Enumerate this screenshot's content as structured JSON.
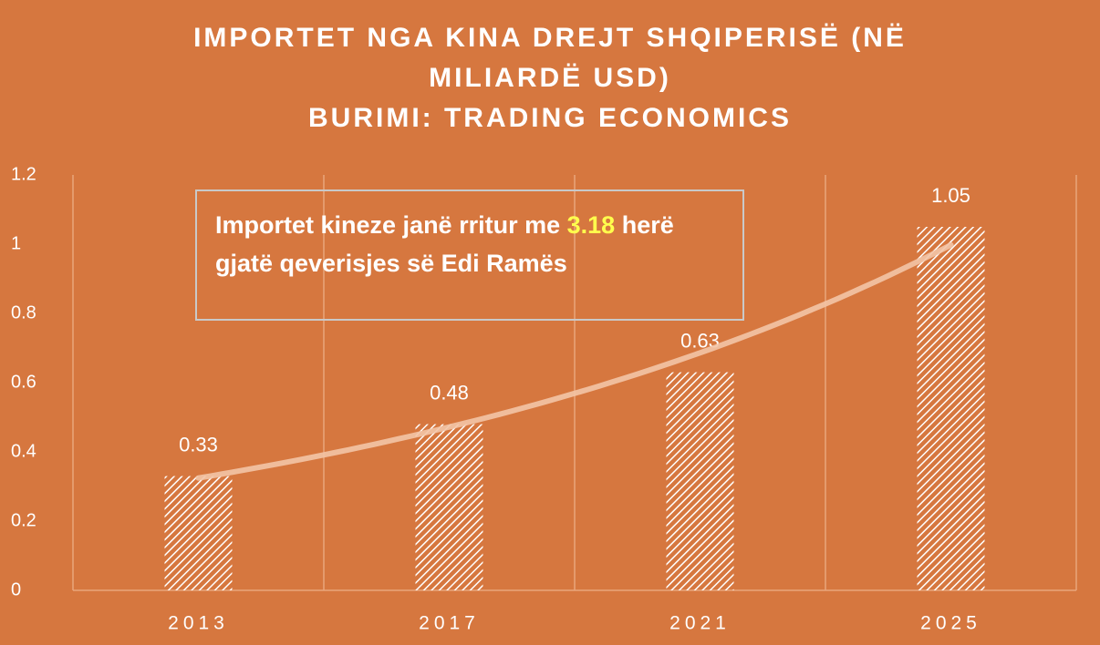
{
  "chart_data": {
    "type": "bar",
    "title": "IMPORTET NGA KINA DREJT SHQIPERISË (NË MILIARDË USD)",
    "subtitle": "BURIMI: TRADING ECONOMICS",
    "categories": [
      "2013",
      "2017",
      "2021",
      "2025"
    ],
    "values": [
      0.33,
      0.48,
      0.63,
      1.05
    ],
    "color": "#ffffff",
    "background": "#d6773f",
    "ylim": [
      0,
      1.2
    ],
    "yticks": [
      0,
      0.2,
      0.4,
      0.6,
      0.8,
      1,
      1.2
    ],
    "trendline": "exponential",
    "annotation": {
      "before": "Importet kineze janë rritur me",
      "highlight": "3.18",
      "after": "herë gjatë qeverisjes së Edi Ramës"
    }
  }
}
